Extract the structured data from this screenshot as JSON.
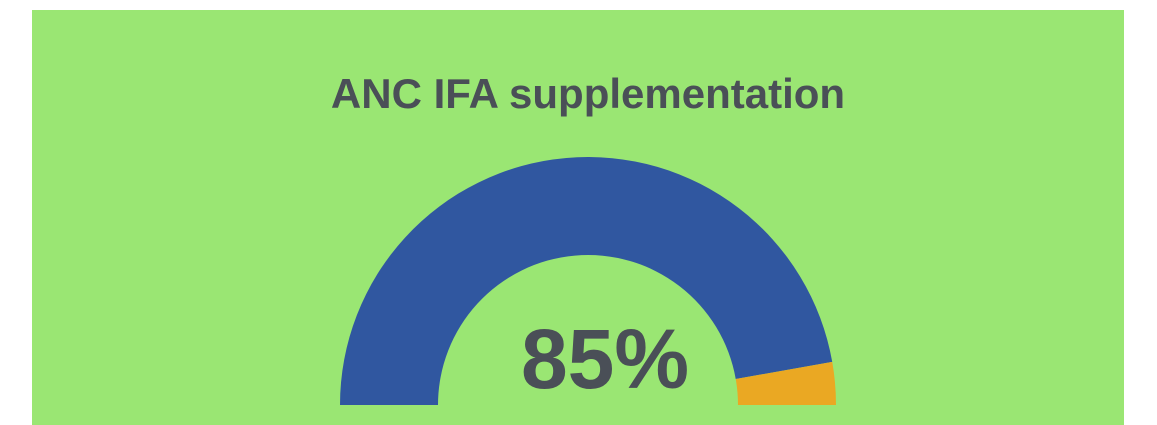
{
  "chart_data": {
    "type": "gauge",
    "title": "ANC IFA supplementation",
    "value": 85,
    "value_label": "85%",
    "ylim": [
      0,
      90
    ],
    "color": "#3057a0",
    "remainder_color": "#eaa823",
    "background": "#9ae673"
  }
}
